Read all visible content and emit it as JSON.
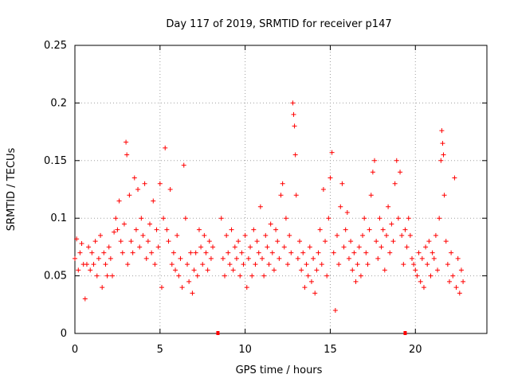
{
  "chart_data": {
    "type": "scatter",
    "title": "Day 117 of 2019, SRMTID for receiver p147",
    "xlabel": "GPS time / hours",
    "ylabel": "SRMTID / TECUs",
    "xlim": [
      0,
      24.2
    ],
    "ylim": [
      0,
      0.25
    ],
    "x_ticks": [
      0,
      5,
      10,
      15,
      20
    ],
    "x_tick_labels": [
      "0",
      "5",
      "10",
      "15",
      "20"
    ],
    "y_ticks": [
      0,
      0.05,
      0.1,
      0.15,
      0.2,
      0.25
    ],
    "y_tick_labels": [
      "0",
      "0.05",
      "0.1",
      "0.15",
      "0.2",
      "0.25"
    ],
    "grid": true,
    "series_color": "#ff0000",
    "data_gaps_at_zero": [
      8.4,
      19.4
    ],
    "series": [
      {
        "name": "SRMTID",
        "points": [
          [
            0.0,
            0.065
          ],
          [
            0.1,
            0.082
          ],
          [
            0.2,
            0.055
          ],
          [
            0.3,
            0.07
          ],
          [
            0.4,
            0.078
          ],
          [
            0.5,
            0.06
          ],
          [
            0.6,
            0.03
          ],
          [
            0.7,
            0.06
          ],
          [
            0.8,
            0.075
          ],
          [
            0.9,
            0.055
          ],
          [
            1.0,
            0.07
          ],
          [
            1.1,
            0.06
          ],
          [
            1.2,
            0.08
          ],
          [
            1.3,
            0.05
          ],
          [
            1.4,
            0.065
          ],
          [
            1.5,
            0.085
          ],
          [
            1.6,
            0.04
          ],
          [
            1.7,
            0.07
          ],
          [
            1.8,
            0.06
          ],
          [
            1.9,
            0.05
          ],
          [
            2.0,
            0.075
          ],
          [
            2.1,
            0.065
          ],
          [
            2.2,
            0.05
          ],
          [
            2.3,
            0.088
          ],
          [
            2.4,
            0.1
          ],
          [
            2.5,
            0.09
          ],
          [
            2.6,
            0.115
          ],
          [
            2.7,
            0.08
          ],
          [
            2.8,
            0.07
          ],
          [
            2.9,
            0.095
          ],
          [
            3.0,
            0.166
          ],
          [
            3.05,
            0.155
          ],
          [
            3.1,
            0.06
          ],
          [
            3.2,
            0.12
          ],
          [
            3.3,
            0.08
          ],
          [
            3.4,
            0.07
          ],
          [
            3.5,
            0.135
          ],
          [
            3.6,
            0.09
          ],
          [
            3.7,
            0.125
          ],
          [
            3.8,
            0.075
          ],
          [
            3.9,
            0.1
          ],
          [
            4.0,
            0.085
          ],
          [
            4.1,
            0.13
          ],
          [
            4.2,
            0.065
          ],
          [
            4.3,
            0.08
          ],
          [
            4.4,
            0.095
          ],
          [
            4.5,
            0.07
          ],
          [
            4.6,
            0.115
          ],
          [
            4.7,
            0.06
          ],
          [
            4.8,
            0.09
          ],
          [
            4.9,
            0.075
          ],
          [
            5.0,
            0.13
          ],
          [
            5.1,
            0.04
          ],
          [
            5.2,
            0.1
          ],
          [
            5.3,
            0.161
          ],
          [
            5.4,
            0.09
          ],
          [
            5.5,
            0.08
          ],
          [
            5.6,
            0.125
          ],
          [
            5.7,
            0.06
          ],
          [
            5.8,
            0.07
          ],
          [
            5.9,
            0.055
          ],
          [
            6.0,
            0.085
          ],
          [
            6.1,
            0.05
          ],
          [
            6.2,
            0.065
          ],
          [
            6.3,
            0.04
          ],
          [
            6.4,
            0.146
          ],
          [
            6.5,
            0.1
          ],
          [
            6.6,
            0.06
          ],
          [
            6.7,
            0.045
          ],
          [
            6.8,
            0.07
          ],
          [
            6.9,
            0.035
          ],
          [
            7.0,
            0.055
          ],
          [
            7.1,
            0.07
          ],
          [
            7.2,
            0.05
          ],
          [
            7.3,
            0.09
          ],
          [
            7.4,
            0.075
          ],
          [
            7.5,
            0.06
          ],
          [
            7.6,
            0.085
          ],
          [
            7.7,
            0.07
          ],
          [
            7.8,
            0.055
          ],
          [
            7.9,
            0.08
          ],
          [
            8.0,
            0.065
          ],
          [
            8.1,
            0.075
          ],
          [
            8.6,
            0.1
          ],
          [
            8.7,
            0.065
          ],
          [
            8.8,
            0.05
          ],
          [
            8.9,
            0.085
          ],
          [
            9.0,
            0.07
          ],
          [
            9.1,
            0.06
          ],
          [
            9.2,
            0.09
          ],
          [
            9.3,
            0.055
          ],
          [
            9.4,
            0.075
          ],
          [
            9.5,
            0.065
          ],
          [
            9.6,
            0.08
          ],
          [
            9.7,
            0.05
          ],
          [
            9.8,
            0.07
          ],
          [
            9.9,
            0.06
          ],
          [
            10.0,
            0.085
          ],
          [
            10.1,
            0.04
          ],
          [
            10.2,
            0.065
          ],
          [
            10.3,
            0.075
          ],
          [
            10.4,
            0.05
          ],
          [
            10.5,
            0.09
          ],
          [
            10.6,
            0.06
          ],
          [
            10.7,
            0.08
          ],
          [
            10.8,
            0.07
          ],
          [
            10.9,
            0.11
          ],
          [
            11.0,
            0.065
          ],
          [
            11.1,
            0.05
          ],
          [
            11.2,
            0.085
          ],
          [
            11.3,
            0.075
          ],
          [
            11.4,
            0.06
          ],
          [
            11.5,
            0.095
          ],
          [
            11.6,
            0.07
          ],
          [
            11.7,
            0.055
          ],
          [
            11.8,
            0.09
          ],
          [
            11.9,
            0.08
          ],
          [
            12.0,
            0.065
          ],
          [
            12.1,
            0.12
          ],
          [
            12.2,
            0.13
          ],
          [
            12.3,
            0.075
          ],
          [
            12.4,
            0.1
          ],
          [
            12.5,
            0.06
          ],
          [
            12.6,
            0.085
          ],
          [
            12.7,
            0.07
          ],
          [
            12.8,
            0.2
          ],
          [
            12.85,
            0.19
          ],
          [
            12.9,
            0.18
          ],
          [
            12.95,
            0.155
          ],
          [
            13.0,
            0.12
          ],
          [
            13.1,
            0.065
          ],
          [
            13.2,
            0.08
          ],
          [
            13.3,
            0.055
          ],
          [
            13.4,
            0.07
          ],
          [
            13.5,
            0.04
          ],
          [
            13.6,
            0.06
          ],
          [
            13.7,
            0.05
          ],
          [
            13.8,
            0.075
          ],
          [
            13.9,
            0.045
          ],
          [
            14.0,
            0.065
          ],
          [
            14.1,
            0.035
          ],
          [
            14.2,
            0.055
          ],
          [
            14.3,
            0.07
          ],
          [
            14.4,
            0.09
          ],
          [
            14.5,
            0.06
          ],
          [
            14.6,
            0.125
          ],
          [
            14.7,
            0.08
          ],
          [
            14.8,
            0.05
          ],
          [
            14.9,
            0.1
          ],
          [
            15.0,
            0.135
          ],
          [
            15.1,
            0.157
          ],
          [
            15.2,
            0.07
          ],
          [
            15.3,
            0.02
          ],
          [
            15.4,
            0.085
          ],
          [
            15.5,
            0.06
          ],
          [
            15.6,
            0.11
          ],
          [
            15.7,
            0.13
          ],
          [
            15.8,
            0.075
          ],
          [
            15.9,
            0.09
          ],
          [
            16.0,
            0.105
          ],
          [
            16.1,
            0.065
          ],
          [
            16.2,
            0.08
          ],
          [
            16.3,
            0.055
          ],
          [
            16.4,
            0.07
          ],
          [
            16.5,
            0.045
          ],
          [
            16.6,
            0.06
          ],
          [
            16.7,
            0.075
          ],
          [
            16.8,
            0.05
          ],
          [
            16.9,
            0.085
          ],
          [
            17.0,
            0.1
          ],
          [
            17.1,
            0.07
          ],
          [
            17.2,
            0.06
          ],
          [
            17.3,
            0.09
          ],
          [
            17.4,
            0.12
          ],
          [
            17.5,
            0.14
          ],
          [
            17.6,
            0.15
          ],
          [
            17.7,
            0.08
          ],
          [
            17.8,
            0.065
          ],
          [
            17.9,
            0.1
          ],
          [
            18.0,
            0.075
          ],
          [
            18.1,
            0.09
          ],
          [
            18.2,
            0.055
          ],
          [
            18.3,
            0.085
          ],
          [
            18.4,
            0.11
          ],
          [
            18.5,
            0.07
          ],
          [
            18.6,
            0.095
          ],
          [
            18.7,
            0.08
          ],
          [
            18.8,
            0.13
          ],
          [
            18.9,
            0.15
          ],
          [
            19.0,
            0.1
          ],
          [
            19.1,
            0.14
          ],
          [
            19.2,
            0.085
          ],
          [
            19.3,
            0.06
          ],
          [
            19.4,
            0.09
          ],
          [
            19.5,
            0.075
          ],
          [
            19.6,
            0.1
          ],
          [
            19.7,
            0.085
          ],
          [
            19.8,
            0.065
          ],
          [
            19.9,
            0.06
          ],
          [
            20.0,
            0.055
          ],
          [
            20.1,
            0.05
          ],
          [
            20.2,
            0.07
          ],
          [
            20.3,
            0.045
          ],
          [
            20.4,
            0.065
          ],
          [
            20.5,
            0.04
          ],
          [
            20.6,
            0.075
          ],
          [
            20.7,
            0.06
          ],
          [
            20.8,
            0.08
          ],
          [
            20.9,
            0.05
          ],
          [
            21.0,
            0.07
          ],
          [
            21.1,
            0.065
          ],
          [
            21.2,
            0.085
          ],
          [
            21.3,
            0.055
          ],
          [
            21.4,
            0.1
          ],
          [
            21.5,
            0.15
          ],
          [
            21.55,
            0.176
          ],
          [
            21.6,
            0.165
          ],
          [
            21.65,
            0.155
          ],
          [
            21.7,
            0.12
          ],
          [
            21.8,
            0.08
          ],
          [
            21.9,
            0.06
          ],
          [
            22.0,
            0.045
          ],
          [
            22.1,
            0.07
          ],
          [
            22.2,
            0.05
          ],
          [
            22.3,
            0.135
          ],
          [
            22.4,
            0.04
          ],
          [
            22.5,
            0.065
          ],
          [
            22.6,
            0.035
          ],
          [
            22.7,
            0.055
          ],
          [
            22.8,
            0.045
          ]
        ]
      }
    ]
  }
}
